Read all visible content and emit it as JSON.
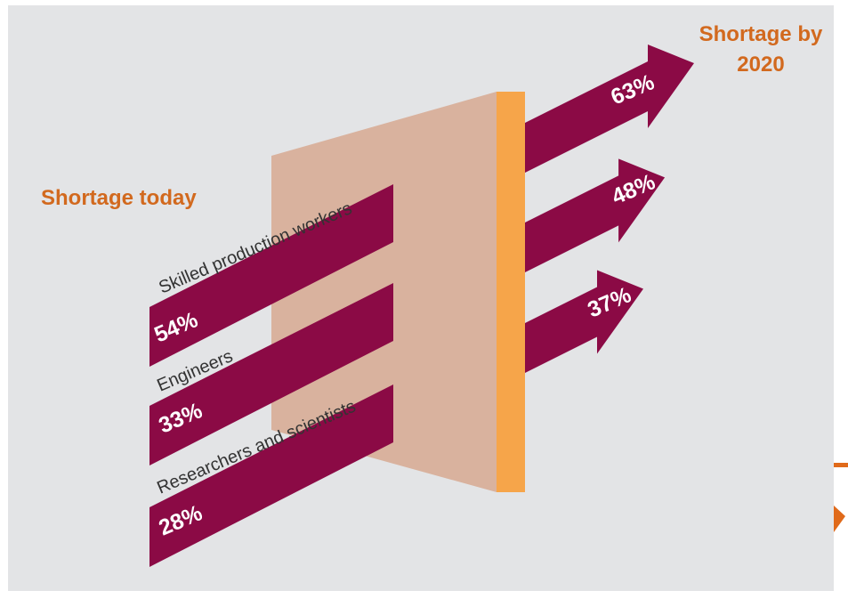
{
  "chart_data": {
    "type": "bar",
    "title_left": "Shortage today",
    "title_right_line1": "Shortage by",
    "title_right_line2": "2020",
    "categories": [
      "Skilled production workers",
      "Engineers",
      "Researchers and scientists"
    ],
    "series": [
      {
        "name": "Shortage today",
        "values": [
          54,
          33,
          28
        ],
        "labels": [
          "54%",
          "33%",
          "28%"
        ]
      },
      {
        "name": "Shortage by 2020",
        "values": [
          63,
          48,
          37
        ],
        "labels": [
          "63%",
          "48%",
          "37%"
        ]
      }
    ],
    "unit": "%",
    "colors": {
      "background": "#e3e4e6",
      "bar": "#8b0a45",
      "panel": "#d9b29e",
      "panel_edge": "#f6a54a",
      "title": "#d2691e",
      "label": "#333333",
      "value_text": "#ffffff",
      "page_edge": "#e06a1a"
    }
  }
}
